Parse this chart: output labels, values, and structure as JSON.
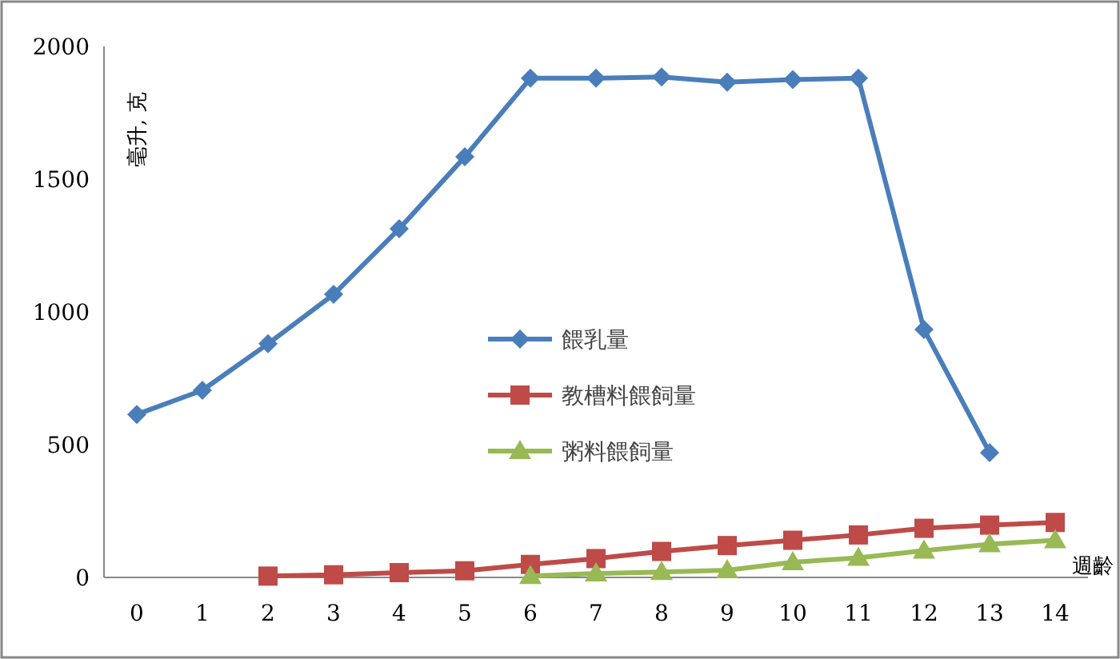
{
  "chart_data": {
    "type": "line",
    "ylabel": "毫升, 克",
    "xlabel": "週齡",
    "x": [
      0,
      1,
      2,
      3,
      4,
      5,
      6,
      7,
      8,
      9,
      10,
      11,
      12,
      13,
      14
    ],
    "xlim": [
      -0.5,
      14.5
    ],
    "xticks": [
      0,
      1,
      2,
      3,
      4,
      5,
      6,
      7,
      8,
      9,
      10,
      11,
      12,
      13,
      14
    ],
    "ylim": [
      0,
      2000
    ],
    "yticks": [
      0,
      500,
      1000,
      1500,
      2000
    ],
    "legend": "center",
    "grid": false,
    "series": [
      {
        "name": "餵乳量",
        "color": "#4a7ebb",
        "marker": "diamond",
        "values": [
          614,
          705,
          880,
          1066,
          1313,
          1584,
          1880,
          1880,
          1885,
          1865,
          1875,
          1880,
          934,
          470,
          null
        ]
      },
      {
        "name": "教槽料餵飼量",
        "color": "#be4b48",
        "marker": "square",
        "values": [
          null,
          null,
          5,
          10,
          18,
          25,
          49,
          71,
          98,
          120,
          140,
          160,
          185,
          197,
          207
        ]
      },
      {
        "name": "粥料餵飼量",
        "color": "#98b954",
        "marker": "triangle",
        "values": [
          null,
          null,
          null,
          null,
          null,
          null,
          5,
          15,
          20,
          27,
          57,
          74,
          101,
          125,
          140
        ]
      }
    ]
  }
}
